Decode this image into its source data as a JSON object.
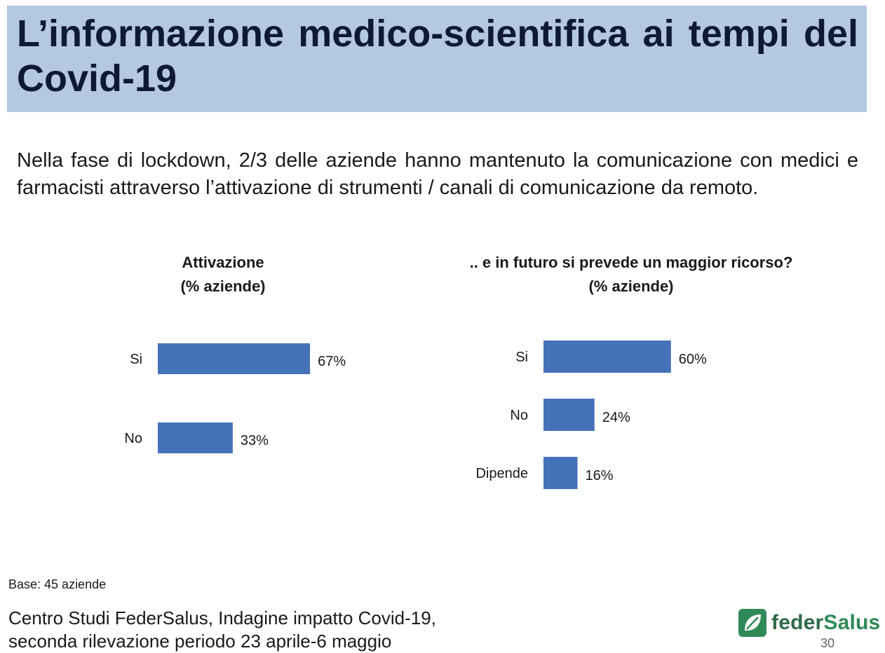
{
  "header": {
    "title": "L’informazione medico-scientifica ai tempi del Covid-19"
  },
  "subtitle": "Nella fase di lockdown,  2/3 delle aziende hanno mantenuto la comunicazione con medici e farmacisti attraverso l’attivazione di strumenti / canali di comunicazione da remoto.",
  "chart_data": [
    {
      "type": "bar",
      "orientation": "horizontal",
      "title_line1": "Attivazione",
      "title_line2": "(% aziende)",
      "categories": [
        "Si",
        "No"
      ],
      "values": [
        67,
        33
      ],
      "value_labels": [
        "67%",
        "33%"
      ],
      "unit": "%",
      "xlim": [
        0,
        100
      ],
      "grid": false,
      "bar_color": "#4472b8"
    },
    {
      "type": "bar",
      "orientation": "horizontal",
      "title_line1": ".. e in futuro si prevede un maggior ricorso?",
      "title_line2": "(% aziende)",
      "categories": [
        "Si",
        "No",
        "Dipende"
      ],
      "values": [
        60,
        24,
        16
      ],
      "value_labels": [
        "60%",
        "24%",
        "16%"
      ],
      "unit": "%",
      "xlim": [
        0,
        100
      ],
      "grid": false,
      "bar_color": "#4472b8"
    }
  ],
  "footer": {
    "base": "Base: 45 aziende",
    "source_line1": "Centro Studi FederSalus, Indagine impatto Covid-19,",
    "source_line2": "seconda rilevazione periodo 23 aprile-6 maggio",
    "logo_text_a": "feder",
    "logo_text_b": "Salus",
    "logo_icon": "leaf-icon",
    "page_number": "30"
  }
}
